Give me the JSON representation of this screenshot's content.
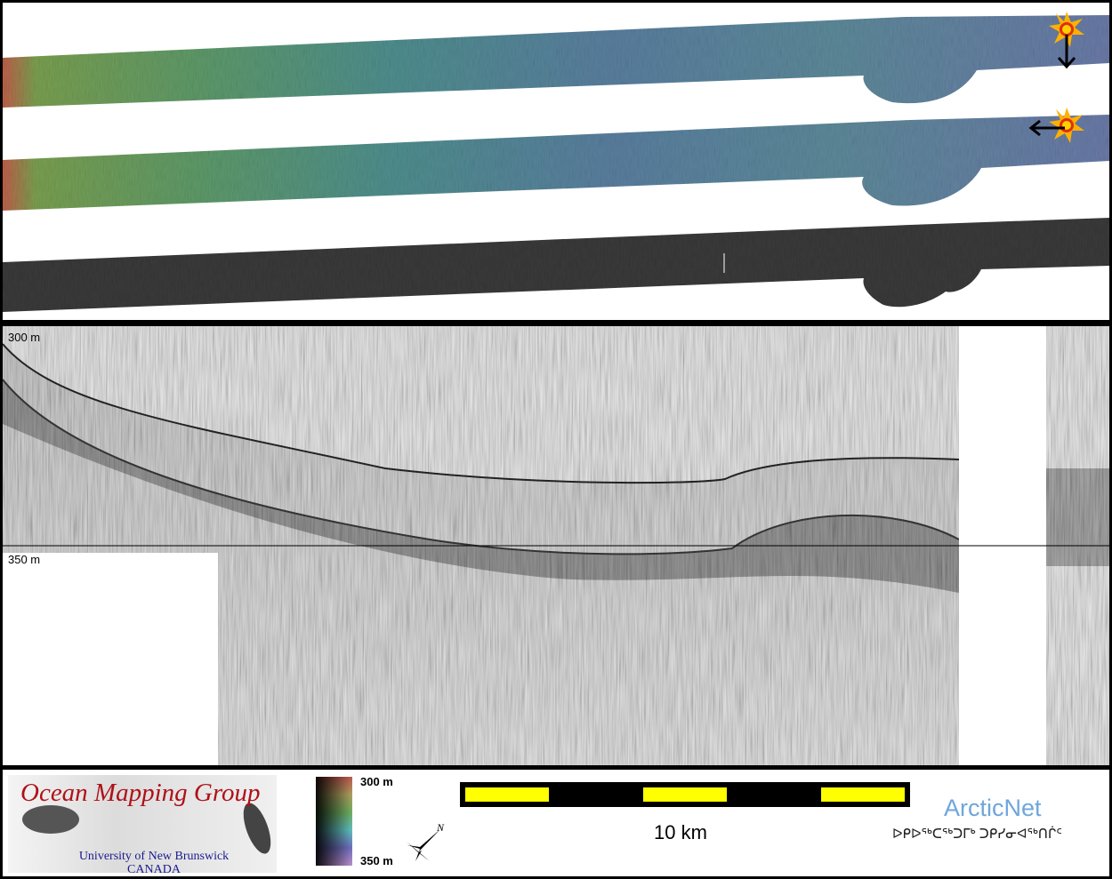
{
  "profile": {
    "top_depth_label": "300 m",
    "bottom_depth_label": "350 m"
  },
  "legend": {
    "logo": {
      "title": "Ocean Mapping Group",
      "university": "University of New Brunswick",
      "country": "CANADA"
    },
    "colorbar": {
      "min_label": "300 m",
      "max_label": "350 m"
    },
    "north_arrow_label": "N",
    "scale_bar": {
      "label": "10 km",
      "colors": [
        "#ffff00",
        "#000000"
      ]
    },
    "partner": {
      "name": "ArcticNet",
      "syllabics": "ᐅᑭᐅᖅᑕᖅᑐᒥᒃ ᑐᑭᓯᓂᐊᖅᑎᒌᑦ"
    }
  },
  "sun_icons": [
    {
      "icon": "sun-icon",
      "arrow": "down"
    },
    {
      "icon": "sun-icon",
      "arrow": "left"
    }
  ]
}
